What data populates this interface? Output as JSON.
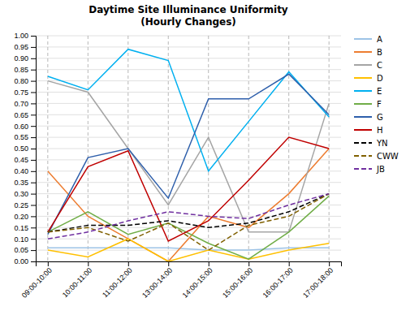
{
  "chart_data": {
    "type": "line",
    "title": "Daytime Site Illuminance Uniformity\n(Hourly Changes)",
    "categories": [
      "09:00-10:00",
      "10:00-11:00",
      "11:00-12:00",
      "13:00-14:00",
      "14:00-15:00",
      "15:00-16:00",
      "16:00-17:00",
      "17:00-18:00"
    ],
    "series": [
      {
        "name": "A",
        "color": "#9DC3E6",
        "line_style": "solid",
        "values": [
          0.06,
          0.06,
          0.06,
          0.06,
          0.05,
          0.05,
          0.06,
          0.06
        ]
      },
      {
        "name": "B",
        "color": "#ED7D31",
        "line_style": "solid",
        "values": [
          0.4,
          0.2,
          0.1,
          0.0,
          0.2,
          0.15,
          0.3,
          0.5
        ]
      },
      {
        "name": "C",
        "color": "#A5A5A5",
        "line_style": "solid",
        "values": [
          0.8,
          0.75,
          0.5,
          0.25,
          0.55,
          0.13,
          0.13,
          0.7
        ]
      },
      {
        "name": "D",
        "color": "#FFC000",
        "line_style": "solid",
        "values": [
          0.05,
          0.02,
          0.1,
          0.0,
          0.05,
          0.01,
          0.05,
          0.08
        ]
      },
      {
        "name": "E",
        "color": "#00B0F0",
        "line_style": "solid",
        "values": [
          0.82,
          0.76,
          0.94,
          0.89,
          0.4,
          0.62,
          0.84,
          0.64
        ]
      },
      {
        "name": "F",
        "color": "#70AD47",
        "line_style": "solid",
        "values": [
          0.13,
          0.22,
          0.12,
          0.17,
          0.08,
          0.01,
          0.13,
          0.29
        ]
      },
      {
        "name": "G",
        "color": "#2E5FAB",
        "line_style": "solid",
        "values": [
          0.12,
          0.46,
          0.5,
          0.28,
          0.72,
          0.72,
          0.83,
          0.65
        ]
      },
      {
        "name": "H",
        "color": "#C00000",
        "line_style": "solid",
        "values": [
          0.13,
          0.42,
          0.49,
          0.09,
          0.18,
          0.36,
          0.55,
          0.5
        ]
      },
      {
        "name": "YN",
        "color": "#000000",
        "line_style": "dashed",
        "values": [
          0.13,
          0.16,
          0.16,
          0.18,
          0.15,
          0.17,
          0.22,
          0.3
        ]
      },
      {
        "name": "CWW",
        "color": "#806000",
        "line_style": "dashed",
        "values": [
          0.13,
          0.15,
          0.09,
          0.17,
          0.05,
          0.16,
          0.2,
          0.3
        ]
      },
      {
        "name": "JB",
        "color": "#7030A0",
        "line_style": "dashed",
        "values": [
          0.1,
          0.13,
          0.18,
          0.22,
          0.2,
          0.19,
          0.25,
          0.3
        ]
      }
    ],
    "ylim": [
      0.0,
      1.0
    ],
    "yticks": [
      {
        "value": 0.0,
        "label": "0.00"
      },
      {
        "value": 0.05,
        "label": "0.05"
      },
      {
        "value": 0.1,
        "label": "0.10"
      },
      {
        "value": 0.15,
        "label": "0.15"
      },
      {
        "value": 0.2,
        "label": "0.20"
      },
      {
        "value": 0.25,
        "label": "0.25"
      },
      {
        "value": 0.3,
        "label": "0.30"
      },
      {
        "value": 0.35,
        "label": "0.35"
      },
      {
        "value": 0.4,
        "label": "0.40"
      },
      {
        "value": 0.45,
        "label": "0.45"
      },
      {
        "value": 0.5,
        "label": "0.50"
      },
      {
        "value": 0.55,
        "label": "0.55"
      },
      {
        "value": 0.6,
        "label": "0.60"
      },
      {
        "value": 0.65,
        "label": "0.65"
      },
      {
        "value": 0.7,
        "label": "0.70"
      },
      {
        "value": 0.75,
        "label": "0.75"
      },
      {
        "value": 0.8,
        "label": "0.80"
      },
      {
        "value": 0.85,
        "label": "0.85"
      },
      {
        "value": 0.9,
        "label": "0.90"
      },
      {
        "value": 0.95,
        "label": "0.95"
      },
      {
        "value": 1.0,
        "label": "1.00"
      }
    ],
    "grid": true,
    "legend": "right"
  }
}
